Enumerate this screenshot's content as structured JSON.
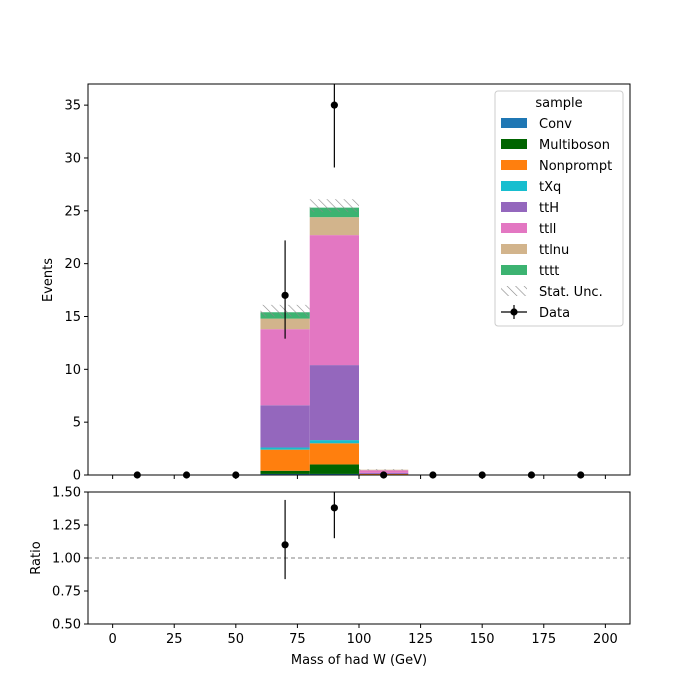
{
  "chart_data": [
    {
      "type": "bar",
      "stacked": true,
      "panel": "main",
      "ylabel": "Events",
      "ylim": [
        0,
        37
      ],
      "yticks": [
        0,
        5,
        10,
        15,
        20,
        25,
        30,
        35
      ],
      "xlim": [
        -10,
        210
      ],
      "bin_edges": [
        0,
        20,
        40,
        60,
        80,
        100,
        120,
        140,
        160,
        180,
        200
      ],
      "legend_title": "sample",
      "legend_position": "top-right",
      "series": [
        {
          "name": "Conv",
          "color": "#1f77b4",
          "values": [
            0,
            0,
            0,
            0.1,
            0.1,
            0.0,
            0,
            0,
            0,
            0
          ]
        },
        {
          "name": "Multiboson",
          "color": "#006400",
          "values": [
            0,
            0,
            0,
            0.3,
            0.9,
            0.05,
            0,
            0,
            0,
            0
          ]
        },
        {
          "name": "Nonprompt",
          "color": "#ff7f0e",
          "values": [
            0,
            0,
            0,
            2.0,
            2.0,
            0.05,
            0,
            0,
            0,
            0
          ]
        },
        {
          "name": "tXq",
          "color": "#17becf",
          "values": [
            0,
            0,
            0,
            0.2,
            0.3,
            0.0,
            0,
            0,
            0,
            0
          ]
        },
        {
          "name": "ttH",
          "color": "#9467bd",
          "values": [
            0,
            0,
            0,
            4.0,
            7.1,
            0.1,
            0,
            0,
            0,
            0
          ]
        },
        {
          "name": "ttll",
          "color": "#e377c2",
          "values": [
            0,
            0,
            0,
            7.2,
            12.3,
            0.25,
            0,
            0,
            0,
            0
          ]
        },
        {
          "name": "ttlnu",
          "color": "#d2b48c",
          "values": [
            0,
            0,
            0,
            1.0,
            1.7,
            0.05,
            0,
            0,
            0,
            0
          ]
        },
        {
          "name": "tttt",
          "color": "#3cb371",
          "values": [
            0,
            0,
            0,
            0.6,
            0.9,
            0.0,
            0,
            0,
            0,
            0
          ]
        }
      ],
      "stat_unc": {
        "name": "Stat. Unc.",
        "down": [
          0,
          0,
          0,
          15.0,
          24.9,
          0.45,
          0,
          0,
          0,
          0
        ],
        "up": [
          0,
          0,
          0,
          16.1,
          26.1,
          0.55,
          0,
          0,
          0,
          0
        ]
      },
      "data": {
        "name": "Data",
        "x": [
          10,
          30,
          50,
          70,
          90,
          110,
          130,
          150,
          170,
          190
        ],
        "y": [
          0,
          0,
          0,
          17,
          35,
          0,
          0,
          0,
          0,
          0
        ],
        "yerr_low": [
          0,
          0,
          0,
          4.1,
          5.9,
          0,
          0,
          0,
          0,
          0
        ],
        "yerr_high": [
          0,
          0,
          0,
          5.2,
          7.0,
          0,
          0,
          0,
          0,
          0
        ]
      }
    },
    {
      "type": "scatter",
      "panel": "ratio",
      "ylabel": "Ratio",
      "xlabel": "Mass of had W (GeV)",
      "ylim": [
        0.5,
        1.5
      ],
      "yticks": [
        "0.50",
        "0.75",
        "1.00",
        "1.25",
        "1.50"
      ],
      "xlim": [
        -10,
        210
      ],
      "xticks": [
        0,
        25,
        50,
        75,
        100,
        125,
        150,
        175,
        200
      ],
      "reference_line": 1.0,
      "x": [
        70,
        90
      ],
      "y": [
        1.1,
        1.38
      ],
      "yerr_low": [
        0.26,
        0.23
      ],
      "yerr_high": [
        0.34,
        0.27
      ]
    }
  ]
}
